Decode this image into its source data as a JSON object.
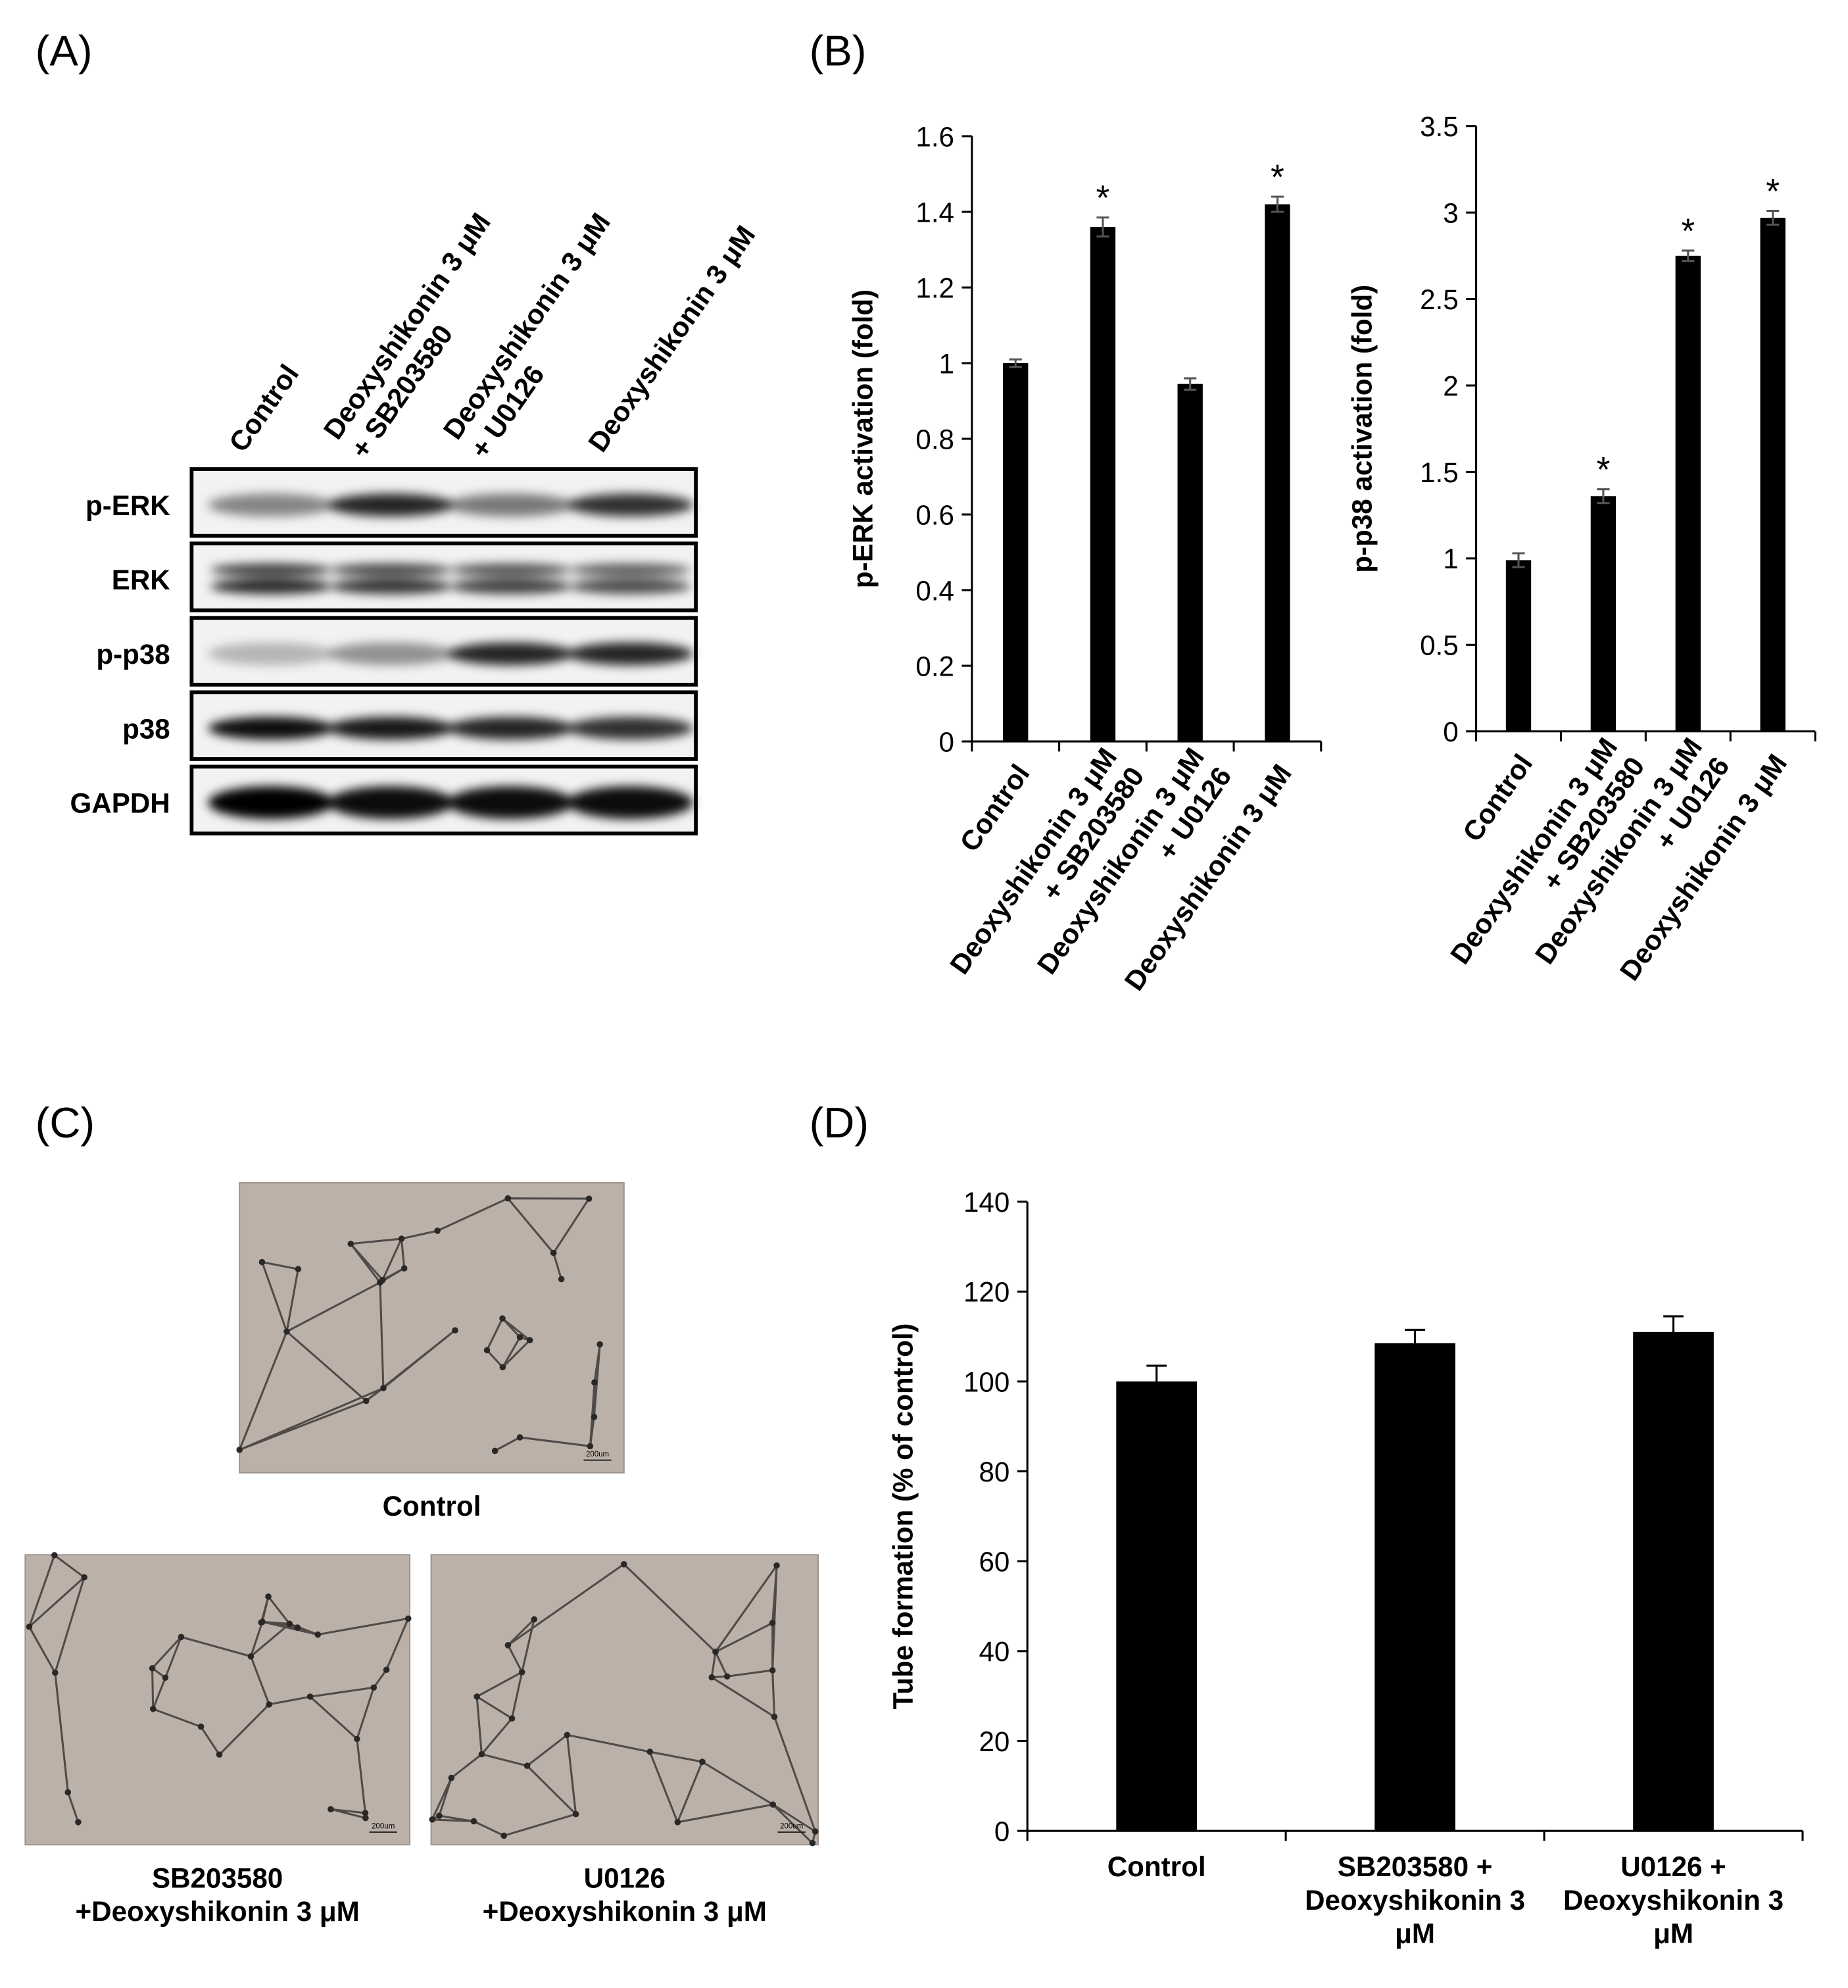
{
  "panel_labels": [
    "(A)",
    "(B)",
    "(C)",
    "(D)"
  ],
  "western_blot": {
    "lanes": [
      "Control",
      "Deoxyshikonin 3 μM\n+ SB203580",
      "Deoxyshikonin 3 μM\n+ U0126",
      "Deoxyshikonin 3 μM"
    ],
    "rows": [
      "p-ERK",
      "ERK",
      "p-p38",
      "p38",
      "GAPDH"
    ]
  },
  "micrographs": {
    "captions": [
      "Control",
      "SB203580\n+Deoxyshikonin 3 μM",
      "U0126\n+Deoxyshikonin 3 μM"
    ],
    "scale_bar": "200um"
  },
  "chart_data": [
    {
      "type": "bar",
      "y_label": "p-ERK activation (fold)",
      "categories": [
        "Control",
        "Deoxyshikonin 3 μM\n+ SB203580",
        "Deoxyshikonin 3 μM\n+ U0126",
        "Deoxyshikonin 3 μM"
      ],
      "values": [
        1.0,
        1.36,
        0.945,
        1.42
      ],
      "errors": [
        0.01,
        0.025,
        0.015,
        0.02
      ],
      "markers": [
        null,
        "*",
        null,
        "*"
      ],
      "color": "#000000",
      "ylim": [
        0,
        1.6
      ],
      "yticks": [
        0,
        0.2,
        0.4,
        0.6,
        0.8,
        1,
        1.2,
        1.4,
        1.6
      ]
    },
    {
      "type": "bar",
      "y_label": "p-p38 activation (fold)",
      "categories": [
        "Control",
        "Deoxyshikonin 3 μM\n+ SB203580",
        "Deoxyshikonin 3 μM\n+ U0126",
        "Deoxyshikonin 3 μM"
      ],
      "values": [
        0.99,
        1.36,
        2.75,
        2.97
      ],
      "errors": [
        0.04,
        0.04,
        0.03,
        0.04
      ],
      "markers": [
        null,
        "*",
        "*",
        "*"
      ],
      "color": "#000000",
      "ylim": [
        0,
        3.5
      ],
      "yticks": [
        0,
        0.5,
        1,
        1.5,
        2,
        2.5,
        3,
        3.5
      ]
    },
    {
      "type": "bar",
      "y_label": "Tube formation (% of control)",
      "categories": [
        "Control",
        "SB203580 +\nDeoxyshikonin 3\nμM",
        "U0126 +\nDeoxyshikonin 3\nμM"
      ],
      "values": [
        100,
        108.5,
        111
      ],
      "errors": [
        3.5,
        3,
        3.5
      ],
      "color": "#000000",
      "ylim": [
        0,
        140
      ],
      "yticks": [
        0,
        20,
        40,
        60,
        80,
        100,
        120,
        140
      ]
    }
  ]
}
